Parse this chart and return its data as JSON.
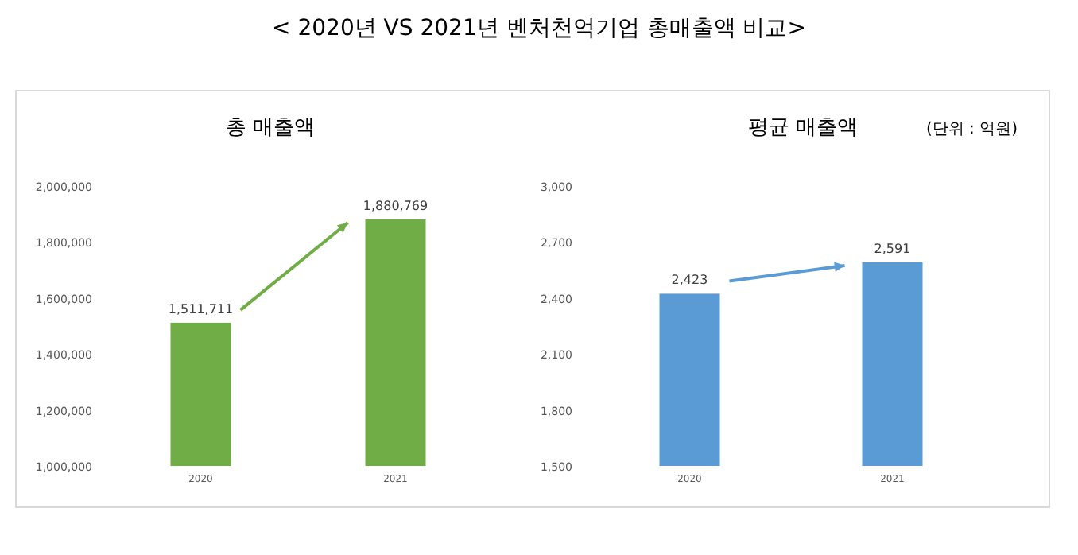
{
  "chart_data": [
    {
      "type": "bar",
      "title": "총 매출액",
      "annotations": [
        "< 2020년 VS 2021년 벤처천억기업 총매출액 비교>"
      ],
      "categories": [
        "2020",
        "2021"
      ],
      "values": [
        1511711,
        1880769
      ],
      "value_labels": [
        "1,511,711",
        "1,880,769"
      ],
      "color": "#70ad47",
      "ylim": [
        1000000,
        2000000
      ],
      "yticks": [
        {
          "value": 1000000,
          "label": "1,000,000"
        },
        {
          "value": 1200000,
          "label": "1,200,000"
        },
        {
          "value": 1400000,
          "label": "1,400,000"
        },
        {
          "value": 1600000,
          "label": "1,600,000"
        },
        {
          "value": 1800000,
          "label": "1,800,000"
        },
        {
          "value": 2000000,
          "label": "2,000,000"
        }
      ]
    },
    {
      "type": "bar",
      "title": "평균 매출액",
      "annotations": [
        "(단위 : 억원)"
      ],
      "categories": [
        "2020",
        "2021"
      ],
      "values": [
        2423,
        2591
      ],
      "value_labels": [
        "2,423",
        "2,591"
      ],
      "color": "#5b9bd5",
      "ylim": [
        1500,
        3000
      ],
      "yticks": [
        {
          "value": 1500,
          "label": "1,500"
        },
        {
          "value": 1800,
          "label": "1,800"
        },
        {
          "value": 2100,
          "label": "2,100"
        },
        {
          "value": 2400,
          "label": "2,400"
        },
        {
          "value": 2700,
          "label": "2,700"
        },
        {
          "value": 3000,
          "label": "3,000"
        }
      ]
    }
  ]
}
